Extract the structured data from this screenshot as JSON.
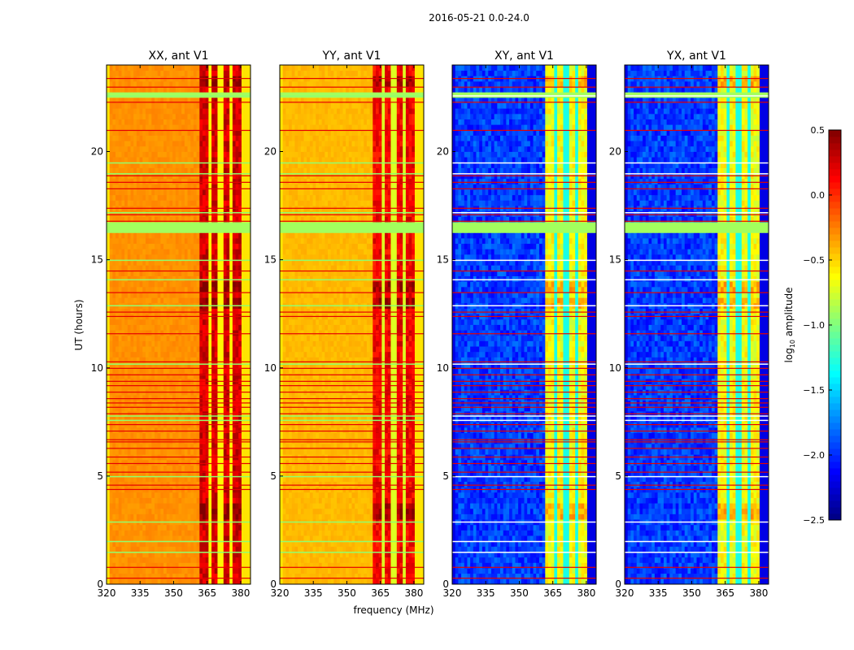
{
  "chart_data": {
    "type": "heatmap",
    "title": "2016-05-21 0.0-24.0",
    "xlabel": "frequency (MHz)",
    "ylabel": "UT (hours)",
    "xlim": [
      320,
      384.4
    ],
    "ylim": [
      0,
      24
    ],
    "xticks": [
      "320",
      "335",
      "350",
      "365",
      "380"
    ],
    "xtick_values": [
      320,
      335,
      350,
      365,
      380
    ],
    "yticks": [
      "0",
      "5",
      "10",
      "15",
      "20"
    ],
    "ytick_values": [
      0,
      5,
      10,
      15,
      20
    ],
    "colormap": "jet",
    "colorbar": {
      "label": "log10 amplitude",
      "label_main": "log",
      "label_sub": "10",
      "label_rest": " amplitude",
      "range": [
        -2.5,
        0.5
      ],
      "ticks": [
        "0.5",
        "0.0",
        "−0.5",
        "−1.0",
        "−1.5",
        "−2.0",
        "−2.5"
      ],
      "tick_values": [
        0.5,
        0.0,
        -0.5,
        -1.0,
        -1.5,
        -2.0,
        -2.5
      ]
    },
    "panels": [
      {
        "title": "XX, ant V1",
        "base_level": -0.3,
        "rfi_level": 0.25,
        "edge_level": -0.7
      },
      {
        "title": "YY, ant V1",
        "base_level": -0.42,
        "rfi_level": 0.15,
        "edge_level": -0.7
      },
      {
        "title": "XY, ant V1",
        "base_level": -1.95,
        "rfi_level": -0.65,
        "edge_level": -2.2
      },
      {
        "title": "YX, ant V1",
        "base_level": -1.95,
        "rfi_level": -0.65,
        "edge_level": -2.2
      }
    ],
    "rfi_band_mhz": [
      361,
      380
    ],
    "rfi_gaps_mhz": [
      366,
      371,
      376
    ],
    "flagged_hours": [
      [
        16.2,
        16.7
      ],
      [
        22.5,
        22.8
      ]
    ],
    "strong_rfi_hours": [
      [
        12.8,
        13.3
      ],
      [
        3.0,
        3.8
      ],
      [
        13.6,
        14.0
      ],
      [
        23.0,
        23.6
      ]
    ],
    "rfi_line_hours": [
      0.3,
      0.8,
      4.4,
      4.6,
      5.2,
      5.6,
      5.9,
      6.3,
      6.6,
      6.7,
      7.1,
      7.4,
      7.9,
      8.2,
      8.4,
      8.6,
      8.9,
      9.2,
      9.4,
      9.7,
      10.0,
      10.3,
      11.6,
      12.4,
      12.6,
      13.5,
      14.5,
      16.8,
      17.1,
      17.4,
      18.3,
      18.6,
      18.9,
      21.0,
      22.3,
      23.0,
      23.4
    ],
    "flag_line_hours": [
      1.5,
      2.0,
      2.9,
      5.0,
      7.6,
      7.8,
      10.2,
      12.9,
      14.1,
      15.0,
      17.2,
      19.0,
      19.5,
      22.6
    ]
  }
}
